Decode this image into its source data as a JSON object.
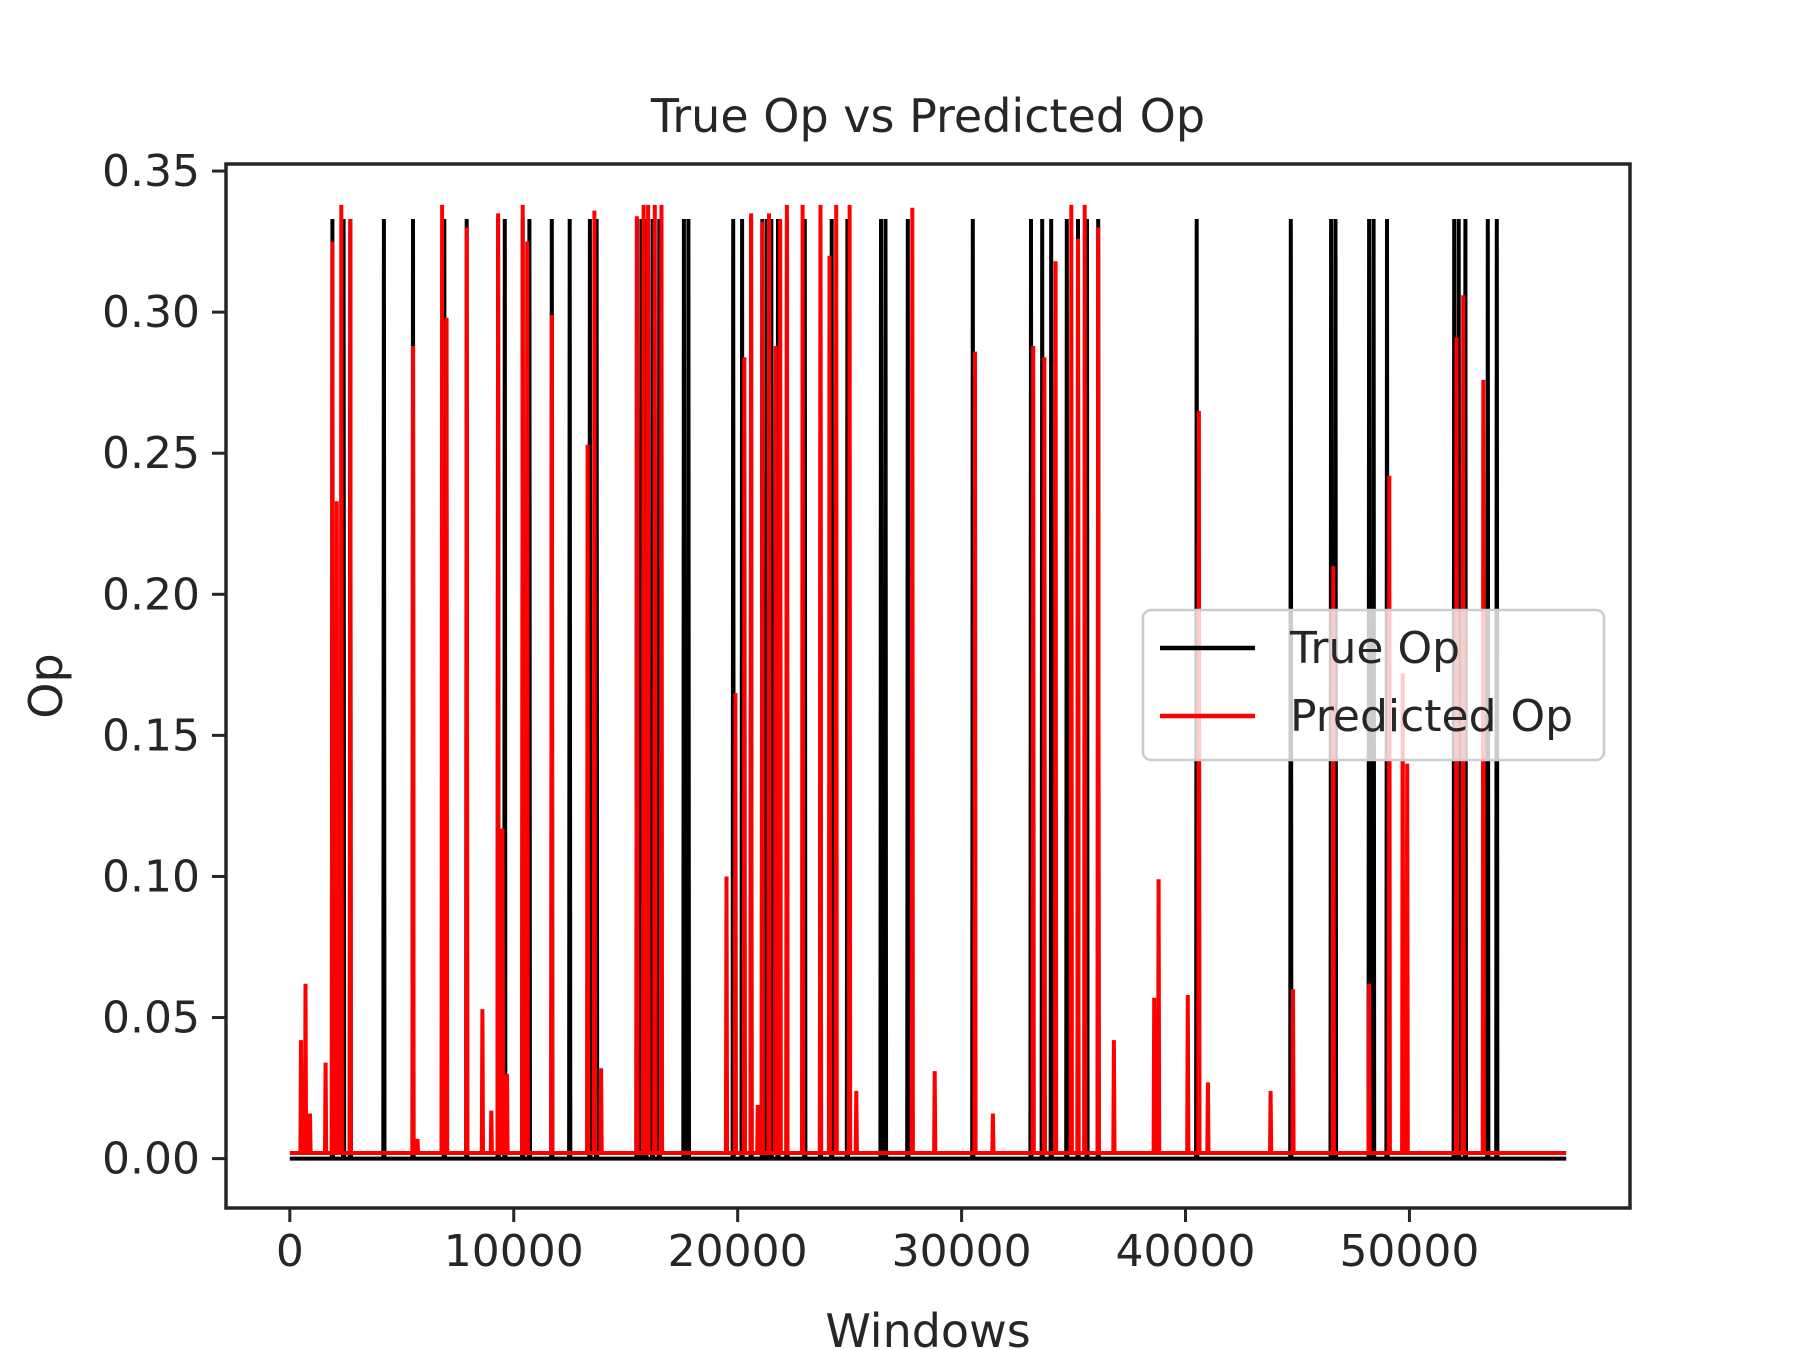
{
  "chart_data": {
    "type": "line",
    "title": "True Op vs Predicted Op",
    "xlabel": "Windows",
    "ylabel": "Op",
    "xlim": [
      -2850,
      59850
    ],
    "ylim": [
      -0.0175,
      0.3525
    ],
    "xticks": [
      0,
      10000,
      20000,
      30000,
      40000,
      50000
    ],
    "xtick_labels": [
      "0",
      "10000",
      "20000",
      "30000",
      "40000",
      "50000"
    ],
    "yticks": [
      0.0,
      0.05,
      0.1,
      0.15,
      0.2,
      0.25,
      0.3,
      0.35
    ],
    "ytick_labels": [
      "0.00",
      "0.05",
      "0.10",
      "0.15",
      "0.20",
      "0.25",
      "0.30",
      "0.35"
    ],
    "grid": false,
    "legend_position": "center-right",
    "x_range": [
      0,
      57000
    ],
    "series": [
      {
        "name": "True Op",
        "color": "#000000",
        "baseline": 0.0,
        "spikes": [
          [
            1900,
            0.333
          ],
          [
            2400,
            0.333
          ],
          [
            2700,
            0.333
          ],
          [
            4200,
            0.333
          ],
          [
            5500,
            0.333
          ],
          [
            6900,
            0.333
          ],
          [
            7900,
            0.333
          ],
          [
            9300,
            0.333
          ],
          [
            9600,
            0.333
          ],
          [
            10400,
            0.333
          ],
          [
            10700,
            0.333
          ],
          [
            11700,
            0.333
          ],
          [
            12500,
            0.333
          ],
          [
            13400,
            0.333
          ],
          [
            13700,
            0.333
          ],
          [
            15500,
            0.333
          ],
          [
            15700,
            0.333
          ],
          [
            15900,
            0.333
          ],
          [
            16200,
            0.333
          ],
          [
            16500,
            0.333
          ],
          [
            17600,
            0.333
          ],
          [
            17800,
            0.333
          ],
          [
            19800,
            0.333
          ],
          [
            20200,
            0.333
          ],
          [
            20600,
            0.333
          ],
          [
            21100,
            0.333
          ],
          [
            21300,
            0.333
          ],
          [
            21500,
            0.333
          ],
          [
            21800,
            0.333
          ],
          [
            22200,
            0.333
          ],
          [
            23000,
            0.333
          ],
          [
            23700,
            0.333
          ],
          [
            24200,
            0.333
          ],
          [
            24900,
            0.333
          ],
          [
            26400,
            0.333
          ],
          [
            26600,
            0.333
          ],
          [
            27600,
            0.333
          ],
          [
            30500,
            0.333
          ],
          [
            33100,
            0.333
          ],
          [
            33600,
            0.333
          ],
          [
            34000,
            0.333
          ],
          [
            34700,
            0.333
          ],
          [
            35200,
            0.333
          ],
          [
            35600,
            0.333
          ],
          [
            36100,
            0.333
          ],
          [
            40500,
            0.333
          ],
          [
            44700,
            0.333
          ],
          [
            46500,
            0.333
          ],
          [
            46700,
            0.333
          ],
          [
            48200,
            0.333
          ],
          [
            48400,
            0.333
          ],
          [
            49000,
            0.333
          ],
          [
            52000,
            0.333
          ],
          [
            52200,
            0.333
          ],
          [
            52500,
            0.333
          ],
          [
            53500,
            0.333
          ],
          [
            53900,
            0.333
          ]
        ]
      },
      {
        "name": "Predicted Op",
        "color": "#ff0000",
        "baseline": 0.002,
        "spikes": [
          [
            500,
            0.042
          ],
          [
            700,
            0.062
          ],
          [
            900,
            0.016
          ],
          [
            1600,
            0.034
          ],
          [
            1900,
            0.325
          ],
          [
            2100,
            0.233
          ],
          [
            2300,
            0.338
          ],
          [
            2700,
            0.333
          ],
          [
            5500,
            0.288
          ],
          [
            5700,
            0.007
          ],
          [
            6800,
            0.338
          ],
          [
            7000,
            0.298
          ],
          [
            7900,
            0.33
          ],
          [
            8600,
            0.053
          ],
          [
            9000,
            0.017
          ],
          [
            9300,
            0.335
          ],
          [
            9500,
            0.117
          ],
          [
            9700,
            0.03
          ],
          [
            10400,
            0.338
          ],
          [
            10600,
            0.325
          ],
          [
            11700,
            0.299
          ],
          [
            13300,
            0.253
          ],
          [
            13600,
            0.336
          ],
          [
            13900,
            0.032
          ],
          [
            15500,
            0.334
          ],
          [
            15800,
            0.338
          ],
          [
            16000,
            0.338
          ],
          [
            16300,
            0.338
          ],
          [
            16600,
            0.338
          ],
          [
            19500,
            0.1
          ],
          [
            19900,
            0.165
          ],
          [
            20300,
            0.284
          ],
          [
            20600,
            0.335
          ],
          [
            20900,
            0.019
          ],
          [
            21100,
            0.332
          ],
          [
            21400,
            0.335
          ],
          [
            21700,
            0.288
          ],
          [
            21900,
            0.333
          ],
          [
            22200,
            0.338
          ],
          [
            22900,
            0.338
          ],
          [
            23700,
            0.338
          ],
          [
            24100,
            0.32
          ],
          [
            24400,
            0.338
          ],
          [
            25000,
            0.338
          ],
          [
            25300,
            0.024
          ],
          [
            27800,
            0.337
          ],
          [
            28800,
            0.031
          ],
          [
            30600,
            0.286
          ],
          [
            31400,
            0.016
          ],
          [
            33200,
            0.288
          ],
          [
            33700,
            0.284
          ],
          [
            34200,
            0.318
          ],
          [
            34900,
            0.338
          ],
          [
            35200,
            0.326
          ],
          [
            35500,
            0.338
          ],
          [
            36100,
            0.33
          ],
          [
            36800,
            0.042
          ],
          [
            38600,
            0.057
          ],
          [
            38800,
            0.099
          ],
          [
            40100,
            0.058
          ],
          [
            40600,
            0.265
          ],
          [
            41000,
            0.027
          ],
          [
            43800,
            0.024
          ],
          [
            44800,
            0.06
          ],
          [
            46600,
            0.21
          ],
          [
            48200,
            0.062
          ],
          [
            49100,
            0.242
          ],
          [
            49700,
            0.172
          ],
          [
            49900,
            0.14
          ],
          [
            52100,
            0.291
          ],
          [
            52400,
            0.306
          ],
          [
            53300,
            0.276
          ]
        ]
      }
    ]
  }
}
